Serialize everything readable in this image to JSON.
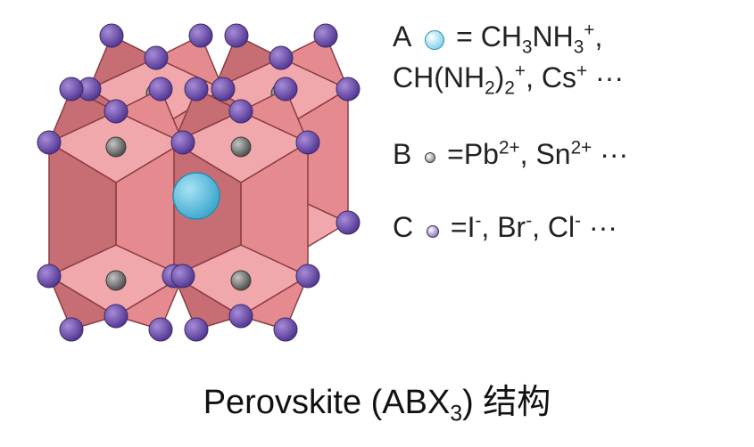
{
  "diagram": {
    "type": "crystal-structure",
    "background_color": "#ffffff",
    "octahedron": {
      "face_color": "#e58b8f",
      "face_color_light": "#f1a8ac",
      "face_color_dark": "#c76d74",
      "edge_color": "#8a3c42",
      "edge_width": 1.5
    },
    "atom_A": {
      "color_fill": "#58c3e8",
      "color_highlight": "#a8e2f5",
      "stroke": "#2b8bb0",
      "radius": 26
    },
    "atom_B": {
      "color_fill": "#6e6e6e",
      "color_highlight": "#b0b0b0",
      "stroke": "#3a3a3a",
      "radius": 11
    },
    "atom_C": {
      "color_fill": "#6a4aa8",
      "color_highlight": "#9d82d1",
      "stroke": "#3d2a66",
      "radius": 13
    }
  },
  "legend": {
    "A": {
      "letter": "A",
      "swatch_color": "#58c3e8",
      "swatch_stroke": "#2b8bb0",
      "swatch_size": 22,
      "html": "= CH<sub>3</sub>NH<sub>3</sub><sup>+</sup>,<br>CH(NH<sub>2</sub>)<sub>2</sub><sup>+</sup>, Cs<sup>+</sup> ···"
    },
    "B": {
      "letter": "B",
      "swatch_color": "#6e6e6e",
      "swatch_stroke": "#3a3a3a",
      "swatch_size": 12,
      "html": "=Pb<sup>2+</sup>, Sn<sup>2+</sup> ···"
    },
    "C": {
      "letter": "C",
      "swatch_color": "#6a4aa8",
      "swatch_stroke": "#3d2a66",
      "swatch_size": 14,
      "html": "=I<sup>-</sup>, Br<sup>-</sup>, Cl<sup>-</sup> ···"
    }
  },
  "caption": {
    "html": "Perovskite (ABX<sub>3</sub>) 结构",
    "fontsize": 38
  }
}
